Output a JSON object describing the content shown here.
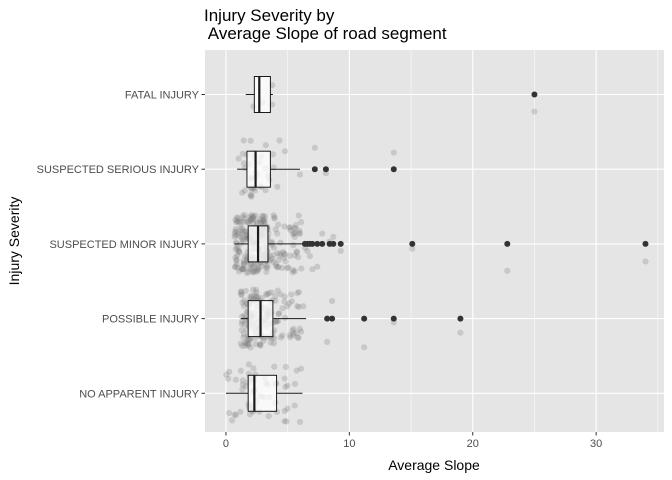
{
  "chart_data": {
    "type": "boxplot",
    "orientation": "horizontal",
    "title_line1": "Injury Severity by",
    "title_line2": " Average Slope of road segment",
    "xlabel": "Average Slope",
    "ylabel": "Injury Severity",
    "xlim": [
      -1.7,
      35.5
    ],
    "x_ticks": [
      0,
      10,
      20,
      30
    ],
    "x_tick_labels": [
      "0",
      "10",
      "20",
      "30"
    ],
    "grid": true,
    "categories": [
      "FATAL INJURY",
      "SUSPECTED SERIOUS INJURY",
      "SUSPECTED MINOR INJURY",
      "POSSIBLE INJURY",
      "NO APPARENT INJURY"
    ],
    "boxes": [
      {
        "category": "FATAL INJURY",
        "whisker_low": 1.6,
        "q1": 2.3,
        "median": 2.7,
        "q3": 3.6,
        "whisker_high": 3.8,
        "outliers": [
          25.0
        ]
      },
      {
        "category": "SUSPECTED SERIOUS INJURY",
        "whisker_low": 0.9,
        "q1": 1.7,
        "median": 2.4,
        "q3": 3.6,
        "whisker_high": 6.0,
        "outliers": [
          7.2,
          8.1,
          13.6
        ]
      },
      {
        "category": "SUSPECTED MINOR INJURY",
        "whisker_low": 0.7,
        "q1": 1.8,
        "median": 2.6,
        "q3": 3.4,
        "whisker_high": 6.2,
        "outliers": [
          6.4,
          6.6,
          6.8,
          7.0,
          7.4,
          7.8,
          8.4,
          8.7,
          9.3,
          15.1,
          22.8,
          34.0
        ]
      },
      {
        "category": "POSSIBLE INJURY",
        "whisker_low": 1.2,
        "q1": 1.8,
        "median": 2.8,
        "q3": 3.8,
        "whisker_high": 6.5,
        "outliers": [
          8.2,
          8.6,
          11.2,
          13.6,
          19.0
        ]
      },
      {
        "category": "NO APPARENT INJURY",
        "whisker_low": 0.0,
        "q1": 1.8,
        "median": 2.3,
        "q3": 4.1,
        "whisker_high": 6.2,
        "outliers": []
      }
    ],
    "jitter_point_counts": [
      4,
      40,
      260,
      160,
      60
    ],
    "colors": {
      "panel_background": "#e5e5e5",
      "gridline": "#ffffff",
      "box_fill": "#ffffff",
      "box_stroke": "#1a1a1a",
      "outlier": "#333333",
      "jitter_point": "#7f7f7f"
    }
  }
}
